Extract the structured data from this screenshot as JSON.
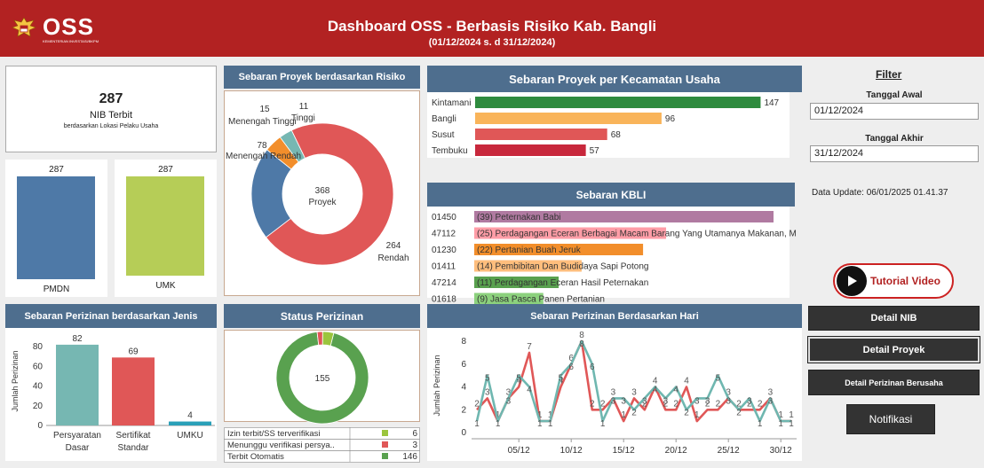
{
  "header": {
    "logo_text": "OSS",
    "logo_subtext": "KEMENTERIAN INVESTASI/BKPM",
    "title": "Dashboard OSS - Berbasis Risiko Kab. Bangli",
    "subtitle": "(01/12/2024 s. d 31/12/2024)"
  },
  "nib": {
    "value": "287",
    "label": "NIB Terbit",
    "sublabel": "berdasarkan Lokasi Pelaku Usaha"
  },
  "pmdn": {
    "value": "287",
    "label": "PMDN",
    "fraction": 1.0
  },
  "umk": {
    "value": "287",
    "label": "UMK",
    "fraction": 1.0
  },
  "risiko": {
    "title": "Sebaran Proyek berdasarkan Risiko",
    "center_value": "368",
    "center_label": "Proyek",
    "slices": [
      {
        "label": "Rendah",
        "value": 264,
        "color": "#e05757"
      },
      {
        "label": "Menengah Rendah",
        "value": 78,
        "color": "#4e79a7"
      },
      {
        "label": "Menengah Tinggi",
        "value": 15,
        "color": "#f28e2b"
      },
      {
        "label": "Tinggi",
        "value": 11,
        "color": "#76b7b2"
      }
    ]
  },
  "kecamatan": {
    "title": "Sebaran Proyek per Kecamatan Usaha",
    "items": [
      {
        "name": "Kintamani",
        "value": 147,
        "color": "#2e8b3e"
      },
      {
        "name": "Bangli",
        "value": 96,
        "color": "#f9b45a"
      },
      {
        "name": "Susut",
        "value": 68,
        "color": "#e05757"
      },
      {
        "name": "Tembuku",
        "value": 57,
        "color": "#c8283c"
      }
    ]
  },
  "kbli": {
    "title": "Sebaran  KBLI",
    "items": [
      {
        "code": "01450",
        "label": "(39) Peternakan Babi",
        "value": 39,
        "color": "#b07aa1"
      },
      {
        "code": "47112",
        "label": "(25) Perdagangan Eceran Berbagai Macam Barang Yang Utamanya Makanan, M",
        "value": 25,
        "color": "#ff9da7"
      },
      {
        "code": "01230",
        "label": "(22) Pertanian Buah Jeruk",
        "value": 22,
        "color": "#f28e2b"
      },
      {
        "code": "01411",
        "label": "(14) Pembibitan Dan Budidaya Sapi Potong",
        "value": 14,
        "color": "#ffbe7d"
      },
      {
        "code": "47214",
        "label": "(11) Perdagangan Eceran Hasil Peternakan",
        "value": 11,
        "color": "#59a14f"
      },
      {
        "code": "01618",
        "label": "(9) Jasa Pasca Panen Pertanian",
        "value": 9,
        "color": "#8cd17d"
      }
    ]
  },
  "filter": {
    "title": "Filter",
    "tanggal_awal_label": "Tanggal Awal",
    "tanggal_awal": "01/12/2024",
    "tanggal_akhir_label": "Tanggal Akhir",
    "tanggal_akhir": "31/12/2024",
    "data_update": "Data Update: 06/01/2025 01.41.37"
  },
  "buttons": {
    "tutorial": "Tutorial Video",
    "detail_nib": "Detail NIB",
    "detail_proyek": "Detail Proyek",
    "detail_perizinan": "Detail Perizinan Berusaha",
    "notifikasi": "Notifikasi"
  },
  "jenis": {
    "title": "Sebaran Perizinan berdasarkan Jenis",
    "ylabel": "Jumlah Perizinan",
    "ylim": [
      0,
      90
    ],
    "yticks": [
      0,
      20,
      40,
      60,
      80
    ],
    "bars": [
      {
        "line1": "Persyaratan",
        "line2": "Dasar",
        "value": 82,
        "color": "#76b7b2"
      },
      {
        "line1": "Sertifikat",
        "line2": "Standar",
        "value": 69,
        "color": "#e05757"
      },
      {
        "line1": "UMKU",
        "line2": "",
        "value": 4,
        "color": "#2aa0b8"
      }
    ]
  },
  "status": {
    "title": "Status Perizinan",
    "center_value": "155",
    "rows": [
      {
        "label": "Izin terbit/SS terverifikasi",
        "value": 6,
        "color": "#9bc53d"
      },
      {
        "label": "Menunggu verifikasi persya..",
        "value": 3,
        "color": "#e05757"
      },
      {
        "label": "Terbit Otomatis",
        "value": 146,
        "color": "#59a14f"
      }
    ]
  },
  "hari": {
    "title": "Sebaran Perizinan Berdasarkan Hari",
    "ylabel": "Jumlah Perizinan",
    "ylim": [
      0,
      8
    ],
    "yticks": [
      0,
      2,
      4,
      6,
      8
    ],
    "x_ticks": [
      {
        "day": 5,
        "label": "05/12"
      },
      {
        "day": 10,
        "label": "10/12"
      },
      {
        "day": 15,
        "label": "15/12"
      },
      {
        "day": 20,
        "label": "20/12"
      },
      {
        "day": 25,
        "label": "25/12"
      },
      {
        "day": 30,
        "label": "30/12"
      }
    ],
    "series": [
      {
        "color": "#e05757",
        "points": [
          [
            1,
            2
          ],
          [
            2,
            3
          ],
          [
            3,
            1
          ],
          [
            4,
            3
          ],
          [
            5,
            4
          ],
          [
            6,
            7
          ],
          [
            7,
            1
          ],
          [
            8,
            1
          ],
          [
            9,
            4
          ],
          [
            10,
            6
          ],
          [
            11,
            8
          ],
          [
            12,
            2
          ],
          [
            13,
            2
          ],
          [
            14,
            3
          ],
          [
            15,
            1
          ],
          [
            16,
            3
          ],
          [
            17,
            2
          ],
          [
            18,
            4
          ],
          [
            19,
            2
          ],
          [
            20,
            2
          ],
          [
            21,
            4
          ],
          [
            22,
            1
          ],
          [
            23,
            2
          ],
          [
            24,
            2
          ],
          [
            25,
            3
          ],
          [
            26,
            2
          ],
          [
            27,
            2
          ],
          [
            28,
            2
          ],
          [
            29,
            3
          ],
          [
            30,
            1
          ],
          [
            31,
            1
          ]
        ]
      },
      {
        "color": "#6fb7b0",
        "points": [
          [
            1,
            1
          ],
          [
            2,
            5
          ],
          [
            3,
            1
          ],
          [
            4,
            3
          ],
          [
            5,
            5
          ],
          [
            6,
            4
          ],
          [
            7,
            1
          ],
          [
            8,
            1
          ],
          [
            9,
            5
          ],
          [
            10,
            6
          ],
          [
            11,
            8
          ],
          [
            12,
            6
          ],
          [
            13,
            1
          ],
          [
            14,
            3
          ],
          [
            15,
            3
          ],
          [
            16,
            2
          ],
          [
            17,
            3
          ],
          [
            18,
            4
          ],
          [
            19,
            3
          ],
          [
            20,
            4
          ],
          [
            21,
            2
          ],
          [
            22,
            3
          ],
          [
            23,
            3
          ],
          [
            24,
            5
          ],
          [
            25,
            3
          ],
          [
            26,
            2
          ],
          [
            27,
            3
          ],
          [
            28,
            1
          ],
          [
            29,
            3
          ],
          [
            30,
            1
          ],
          [
            31,
            1
          ]
        ]
      }
    ]
  }
}
